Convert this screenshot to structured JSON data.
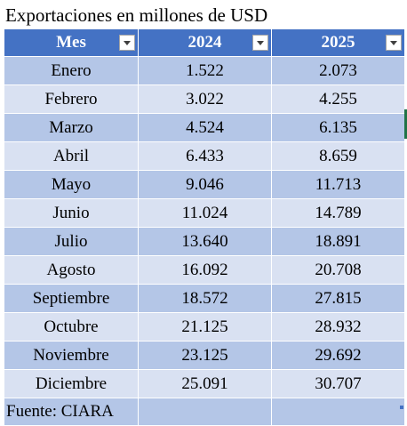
{
  "title": "Exportaciones en millones de USD",
  "headers": {
    "month": "Mes",
    "y2024": "2024",
    "y2025": "2025"
  },
  "rows": [
    {
      "month": "Enero",
      "y2024": "1.522",
      "y2025": "2.073"
    },
    {
      "month": "Febrero",
      "y2024": "3.022",
      "y2025": "4.255"
    },
    {
      "month": "Marzo",
      "y2024": "4.524",
      "y2025": "6.135"
    },
    {
      "month": "Abril",
      "y2024": "6.433",
      "y2025": "8.659"
    },
    {
      "month": "Mayo",
      "y2024": "9.046",
      "y2025": "11.713"
    },
    {
      "month": "Junio",
      "y2024": "11.024",
      "y2025": "14.789"
    },
    {
      "month": "Julio",
      "y2024": "13.640",
      "y2025": "18.891"
    },
    {
      "month": "Agosto",
      "y2024": "16.092",
      "y2025": "20.708"
    },
    {
      "month": "Septiembre",
      "y2024": "18.572",
      "y2025": "27.815"
    },
    {
      "month": "Octubre",
      "y2024": "21.125",
      "y2025": "28.932"
    },
    {
      "month": "Noviembre",
      "y2024": "23.125",
      "y2025": "29.692"
    },
    {
      "month": "Diciembre",
      "y2024": "25.091",
      "y2025": "30.707"
    }
  ],
  "footer": "Fuente: CIARA",
  "colors": {
    "header": "#4472c4",
    "band_dark": "#b4c6e7",
    "band_light": "#d9e1f2",
    "selection": "#217346"
  }
}
